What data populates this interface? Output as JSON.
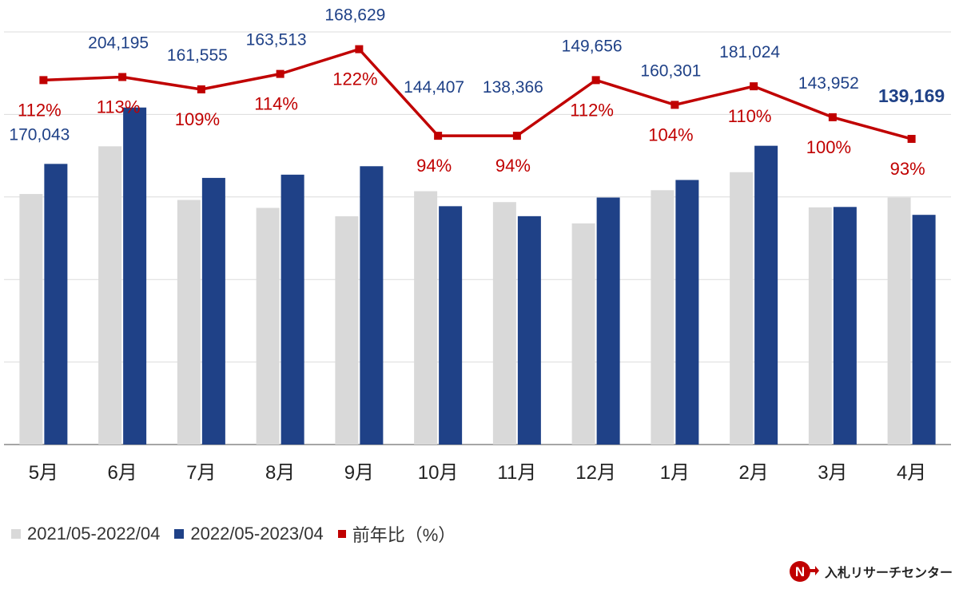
{
  "chart_data": {
    "type": "bar",
    "categories": [
      "5月",
      "6月",
      "7月",
      "8月",
      "9月",
      "10月",
      "11月",
      "12月",
      "1月",
      "2月",
      "3月",
      "4月"
    ],
    "series": [
      {
        "name": "2021/05-2022/04",
        "type": "bar",
        "color": "#d9d9d9",
        "values": [
          151800,
          180700,
          148200,
          143400,
          138300,
          153500,
          146900,
          134000,
          154100,
          165000,
          143700,
          149700
        ]
      },
      {
        "name": "2022/05-2023/04",
        "type": "bar",
        "color": "#1f4187",
        "values": [
          170043,
          204195,
          161555,
          163513,
          168629,
          144407,
          138366,
          149656,
          160301,
          181024,
          143952,
          139169
        ],
        "labels": [
          "170,043",
          "204,195",
          "161,555",
          "163,513",
          "168,629",
          "144,407",
          "138,366",
          "149,656",
          "160,301",
          "181,024",
          "143,952",
          "139,169"
        ]
      },
      {
        "name": "前年比（%）",
        "type": "line",
        "color": "#c00000",
        "values": [
          112,
          113,
          109,
          114,
          122,
          94,
          94,
          112,
          104,
          110,
          100,
          93
        ],
        "labels": [
          "112%",
          "113%",
          "109%",
          "114%",
          "122%",
          "94%",
          "94%",
          "112%",
          "104%",
          "110%",
          "100%",
          "93%"
        ]
      }
    ],
    "ylim": [
      0,
      250000
    ],
    "line_ylim": [
      85,
      125
    ],
    "grid": true,
    "legend": "bottom-left",
    "highlight_last": true
  },
  "brand": {
    "name": "入札リサーチセンター"
  }
}
